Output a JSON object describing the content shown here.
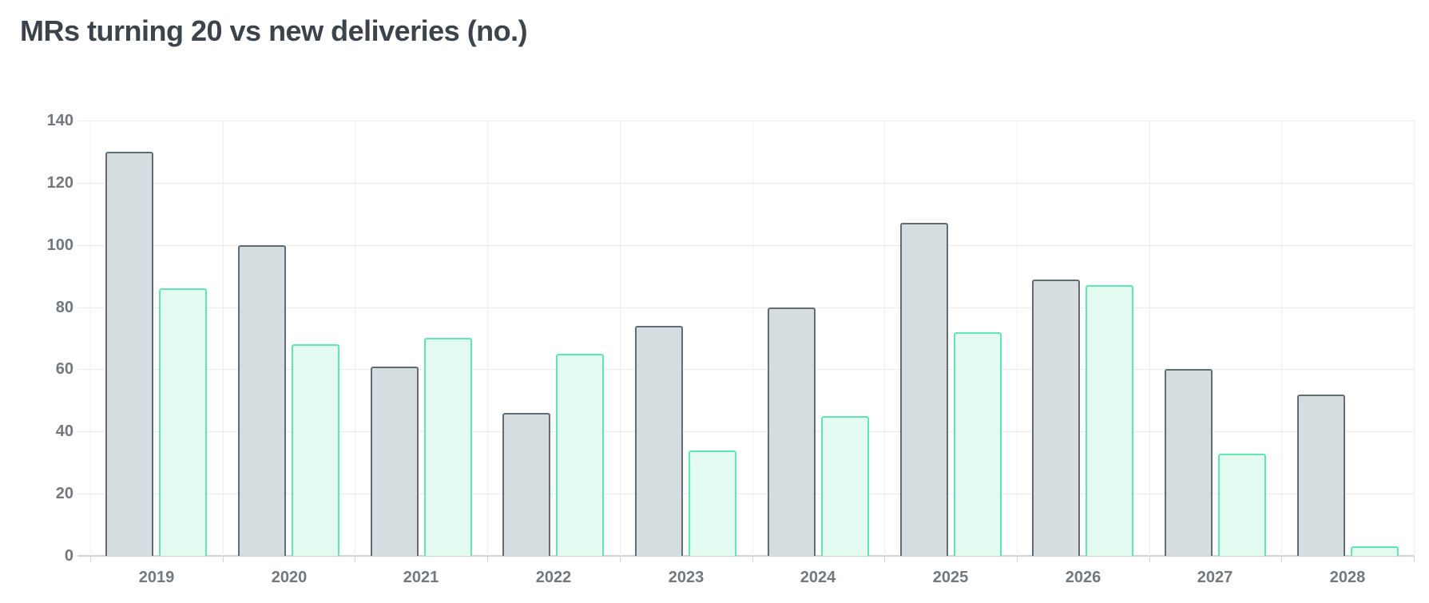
{
  "title": "MRs turning 20 vs new deliveries (no.)",
  "chart_data": {
    "type": "bar",
    "title": "MRs turning 20 vs new deliveries (no.)",
    "categories": [
      "2019",
      "2020",
      "2021",
      "2022",
      "2023",
      "2024",
      "2025",
      "2026",
      "2027",
      "2028"
    ],
    "series": [
      {
        "name": "MRs turning 20",
        "fill": "#d5dde0",
        "border": "#626c72",
        "values": [
          130,
          100,
          61,
          46,
          74,
          80,
          107,
          89,
          60,
          52
        ]
      },
      {
        "name": "New deliveries",
        "fill": "#e4fbf1",
        "border": "#5fe6b5",
        "values": [
          86,
          68,
          70,
          65,
          34,
          45,
          72,
          87,
          33,
          3
        ]
      }
    ],
    "xlabel": "",
    "ylabel": "",
    "ylim": [
      0,
      140
    ],
    "yticks": [
      0,
      20,
      40,
      60,
      80,
      100,
      120,
      140
    ],
    "grid": true,
    "legend_position": "none"
  }
}
